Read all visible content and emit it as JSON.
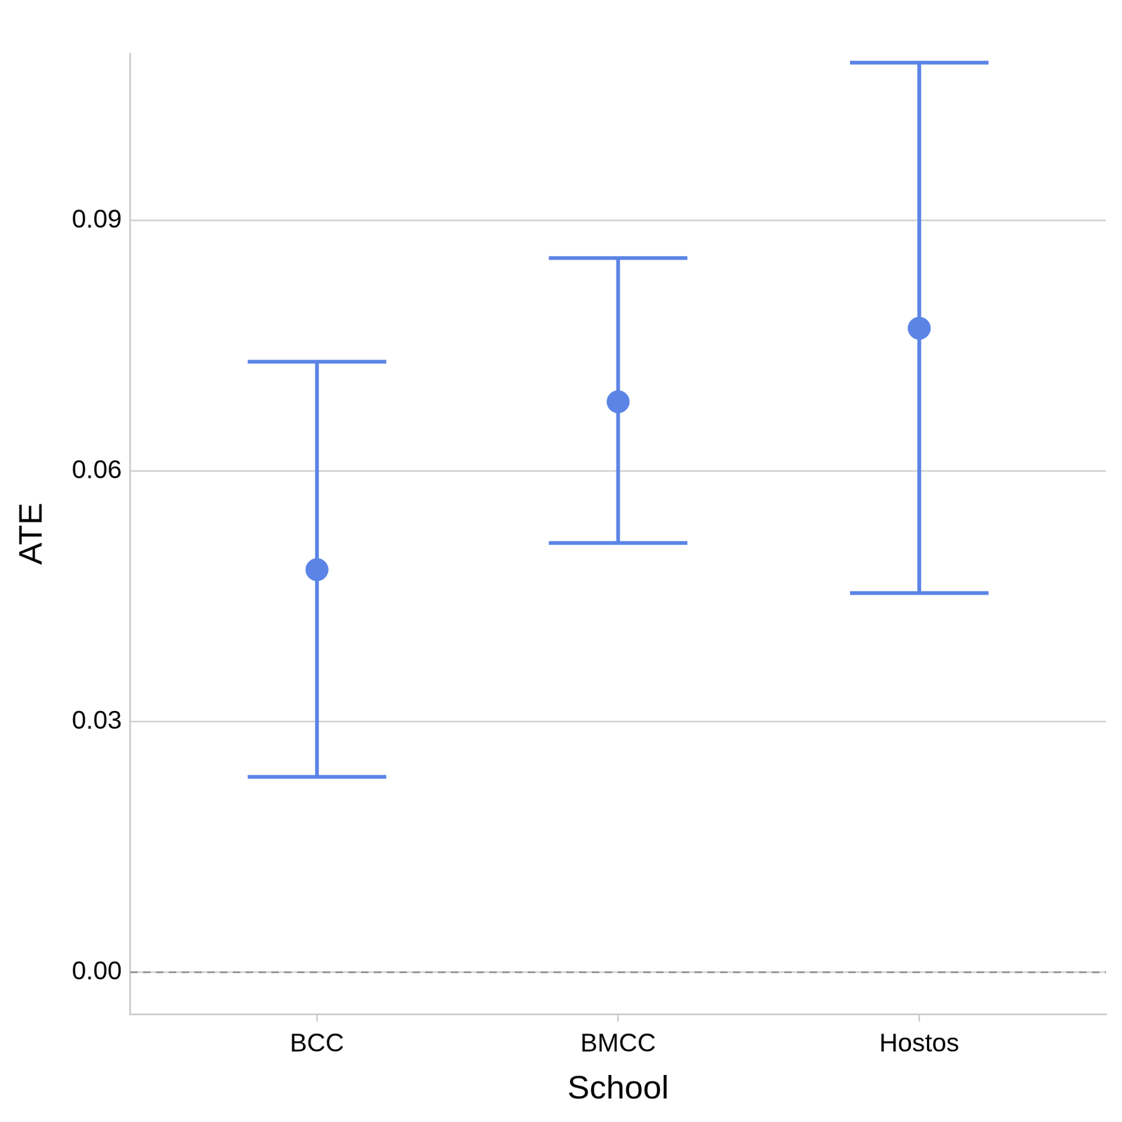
{
  "chart_data": {
    "type": "point",
    "xlabel": "School",
    "ylabel": "ATE",
    "categories": [
      "BCC",
      "BMCC",
      "Hostos"
    ],
    "values": [
      0.0482,
      0.0683,
      0.0771
    ],
    "lower": [
      0.0234,
      0.0514,
      0.0454
    ],
    "upper": [
      0.0731,
      0.0855,
      0.1089
    ],
    "color": "#5b84e6",
    "ylim": [
      -0.005,
      0.11
    ],
    "yticks": [
      {
        "value": 0,
        "label": "0.00"
      },
      0.03,
      0.06,
      0.09
    ],
    "hline": 0,
    "grid": true
  }
}
